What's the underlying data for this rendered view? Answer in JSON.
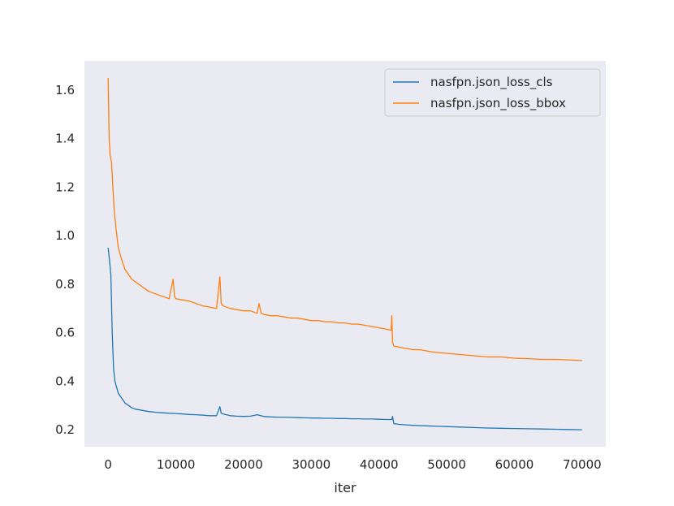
{
  "chart_data": {
    "type": "line",
    "title": "",
    "xlabel": "iter",
    "ylabel": "",
    "xlim": [
      -3500,
      73500
    ],
    "ylim": [
      0.13,
      1.72
    ],
    "xticks": [
      0,
      10000,
      20000,
      30000,
      40000,
      50000,
      60000,
      70000
    ],
    "xtick_labels": [
      "0",
      "10000",
      "20000",
      "30000",
      "40000",
      "50000",
      "60000",
      "70000"
    ],
    "yticks": [
      0.2,
      0.4,
      0.6,
      0.8,
      1.0,
      1.2,
      1.4,
      1.6
    ],
    "ytick_labels": [
      "0.2",
      "0.4",
      "0.6",
      "0.8",
      "1.0",
      "1.2",
      "1.4",
      "1.6"
    ],
    "grid": false,
    "background": "#eaeaf2",
    "legend_position": "top-right",
    "series": [
      {
        "name": "nasfpn.json_loss_cls",
        "color": "#1f77b4",
        "x": [
          0,
          200,
          400,
          600,
          800,
          1000,
          1500,
          2000,
          2500,
          3000,
          3500,
          4000,
          5000,
          6000,
          7000,
          8000,
          9000,
          10000,
          11000,
          12000,
          13000,
          14000,
          15000,
          16000,
          16500,
          16700,
          17000,
          18000,
          19000,
          20000,
          21000,
          22000,
          23000,
          24000,
          25000,
          26000,
          27000,
          28000,
          29000,
          30000,
          31000,
          32000,
          33000,
          34000,
          35000,
          36000,
          37000,
          38000,
          39000,
          40000,
          41000,
          41900,
          42000,
          42200,
          43000,
          44000,
          45000,
          46000,
          47000,
          48000,
          49000,
          50000,
          52000,
          54000,
          56000,
          58000,
          60000,
          62000,
          64000,
          66000,
          68000,
          70000
        ],
        "y": [
          0.95,
          0.9,
          0.84,
          0.6,
          0.45,
          0.4,
          0.35,
          0.33,
          0.31,
          0.3,
          0.29,
          0.285,
          0.28,
          0.275,
          0.272,
          0.27,
          0.268,
          0.267,
          0.265,
          0.263,
          0.262,
          0.26,
          0.258,
          0.258,
          0.295,
          0.268,
          0.265,
          0.258,
          0.256,
          0.255,
          0.256,
          0.262,
          0.255,
          0.253,
          0.252,
          0.252,
          0.251,
          0.25,
          0.249,
          0.248,
          0.248,
          0.247,
          0.247,
          0.246,
          0.246,
          0.245,
          0.245,
          0.244,
          0.244,
          0.243,
          0.242,
          0.242,
          0.255,
          0.225,
          0.222,
          0.22,
          0.218,
          0.217,
          0.216,
          0.215,
          0.214,
          0.213,
          0.211,
          0.209,
          0.207,
          0.206,
          0.205,
          0.204,
          0.203,
          0.202,
          0.201,
          0.2
        ]
      },
      {
        "name": "nasfpn.json_loss_bbox",
        "color": "#ff7f0e",
        "x": [
          0,
          150,
          300,
          500,
          700,
          900,
          1200,
          1500,
          2000,
          2500,
          3000,
          3500,
          4000,
          5000,
          6000,
          7000,
          8000,
          9000,
          9600,
          9800,
          10000,
          11000,
          12000,
          13000,
          14000,
          15000,
          16000,
          16500,
          16700,
          17000,
          18000,
          19000,
          20000,
          21000,
          22000,
          22300,
          22600,
          23000,
          24000,
          25000,
          26000,
          27000,
          28000,
          29000,
          30000,
          31000,
          32000,
          33000,
          34000,
          35000,
          36000,
          37000,
          38000,
          39000,
          40000,
          41000,
          41800,
          41900,
          42000,
          42200,
          43000,
          44000,
          45000,
          46000,
          47000,
          48000,
          50000,
          52000,
          54000,
          56000,
          58000,
          60000,
          62000,
          64000,
          66000,
          68000,
          70000
        ],
        "y": [
          1.65,
          1.4,
          1.33,
          1.3,
          1.2,
          1.1,
          1.02,
          0.95,
          0.9,
          0.86,
          0.84,
          0.82,
          0.81,
          0.79,
          0.77,
          0.76,
          0.75,
          0.74,
          0.82,
          0.75,
          0.74,
          0.735,
          0.73,
          0.72,
          0.71,
          0.705,
          0.7,
          0.83,
          0.72,
          0.71,
          0.7,
          0.695,
          0.69,
          0.69,
          0.68,
          0.72,
          0.68,
          0.675,
          0.67,
          0.67,
          0.665,
          0.66,
          0.66,
          0.655,
          0.65,
          0.65,
          0.645,
          0.645,
          0.64,
          0.64,
          0.635,
          0.635,
          0.63,
          0.625,
          0.62,
          0.615,
          0.61,
          0.67,
          0.56,
          0.545,
          0.54,
          0.535,
          0.53,
          0.53,
          0.525,
          0.52,
          0.515,
          0.51,
          0.505,
          0.5,
          0.5,
          0.495,
          0.493,
          0.49,
          0.49,
          0.488,
          0.485
        ]
      }
    ]
  }
}
